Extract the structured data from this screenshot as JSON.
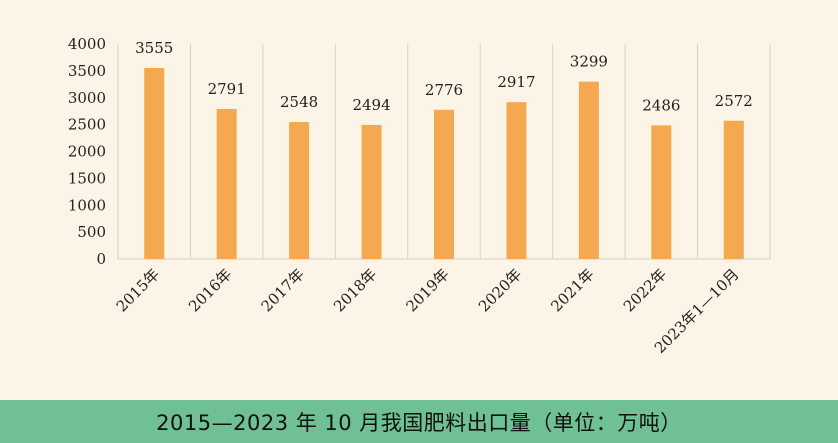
{
  "chart_data": {
    "type": "bar",
    "title": "",
    "xlabel": "",
    "ylabel": "",
    "ylim": [
      0,
      4000
    ],
    "yticks": [
      0,
      500,
      1000,
      1500,
      2000,
      2500,
      3000,
      3500,
      4000
    ],
    "categories": [
      "2015年",
      "2016年",
      "2017年",
      "2018年",
      "2019年",
      "2020年",
      "2021年",
      "2022年",
      "2023年1—10月"
    ],
    "values": [
      3555,
      2791,
      2548,
      2494,
      2776,
      2917,
      3299,
      2486,
      2572
    ],
    "data_labels": [
      "3555",
      "2791",
      "2548",
      "2494",
      "2776",
      "2917",
      "3299",
      "2486",
      "2572"
    ],
    "bar_color": "#f4a850",
    "grid": "vertical",
    "legend": "none"
  },
  "caption": "2015—2023 年 10 月我国肥料出口量（单位：万吨）"
}
